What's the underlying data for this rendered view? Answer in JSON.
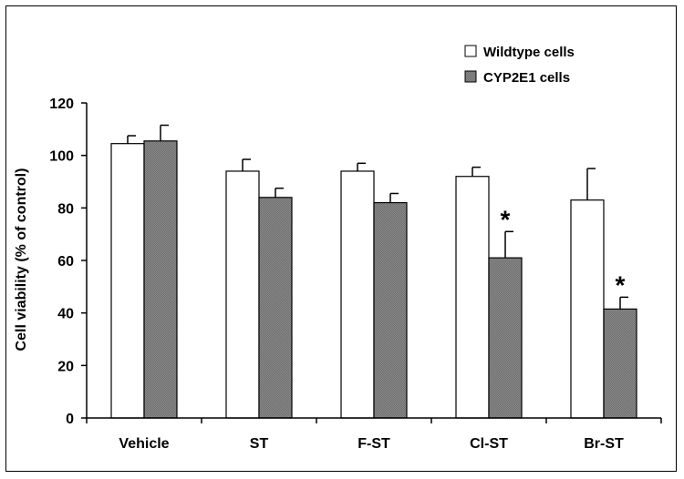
{
  "chart_data": {
    "type": "bar",
    "title": "",
    "xlabel": "",
    "ylabel": "Cell viability (% of control)",
    "ylim": [
      0,
      120
    ],
    "yticks": [
      0,
      20,
      40,
      60,
      80,
      100,
      120
    ],
    "categories": [
      "Vehicle",
      "ST",
      "F-ST",
      "Cl-ST",
      "Br-ST"
    ],
    "series": [
      {
        "name": "Wildtype cells",
        "color": "#ffffff",
        "values": [
          104.5,
          94,
          94,
          92,
          83
        ],
        "errors": [
          3,
          4.5,
          3,
          3.5,
          12
        ]
      },
      {
        "name": "CYP2E1 cells",
        "color": "#808080",
        "values": [
          105.5,
          84,
          82,
          61,
          41.5
        ],
        "errors": [
          6,
          3.5,
          3.5,
          10,
          4.5
        ]
      }
    ],
    "annotations": [
      {
        "series": 1,
        "category": 3,
        "text": "*"
      },
      {
        "series": 1,
        "category": 4,
        "text": "*"
      }
    ],
    "legend_position": "top-right"
  }
}
